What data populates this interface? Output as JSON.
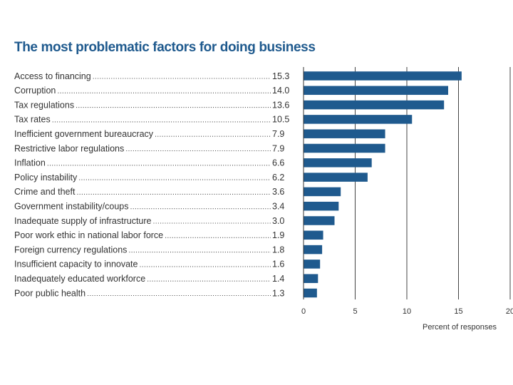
{
  "chart_data": {
    "type": "bar",
    "orientation": "horizontal",
    "title": "The most problematic factors for doing business",
    "xlabel": "Percent of responses",
    "ylabel": "",
    "xlim": [
      0,
      20
    ],
    "xticks": [
      "0",
      "5",
      "10",
      "15",
      "20"
    ],
    "grid": true,
    "categories": [
      "Access to financing",
      "Corruption",
      "Tax regulations",
      "Tax rates",
      "Inefficient government bureaucracy",
      "Restrictive labor regulations",
      "Inflation",
      "Policy instability",
      "Crime and theft",
      "Government instability/coups",
      "Inadequate supply of infrastructure",
      "Poor work ethic in national labor force",
      "Foreign currency regulations",
      "Insufficient capacity to innovate",
      "Inadequately educated workforce",
      "Poor public health"
    ],
    "values": [
      15.3,
      14.0,
      13.6,
      10.5,
      7.9,
      7.9,
      6.6,
      6.2,
      3.6,
      3.4,
      3.0,
      1.9,
      1.8,
      1.6,
      1.4,
      1.3
    ],
    "value_labels": [
      "15.3",
      "14.0",
      "13.6",
      "10.5",
      "7.9",
      "7.9",
      "6.6",
      "6.2",
      "3.6",
      "3.4",
      "3.0",
      "1.9",
      "1.8",
      "1.6",
      "1.4",
      "1.3"
    ],
    "bar_color": "#1f5a8e"
  }
}
